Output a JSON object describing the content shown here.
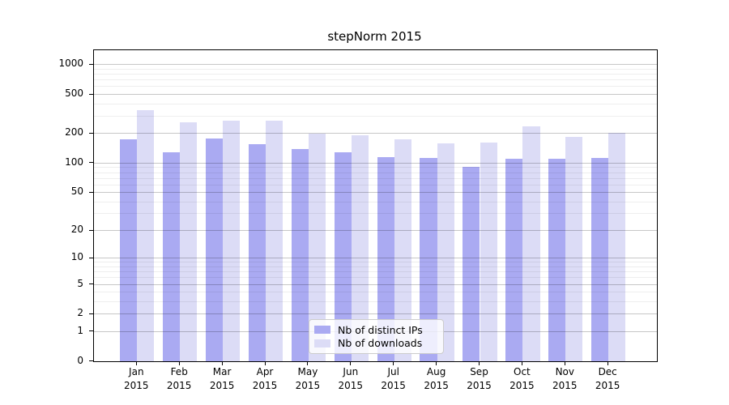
{
  "chart_data": {
    "type": "bar",
    "title": "stepNorm 2015",
    "categories": [
      "Jan 2015",
      "Feb 2015",
      "Mar 2015",
      "Apr 2015",
      "May 2015",
      "Jun 2015",
      "Jul 2015",
      "Aug 2015",
      "Sep 2015",
      "Oct 2015",
      "Nov 2015",
      "Dec 2015"
    ],
    "series": [
      {
        "name": "Nb of distinct IPs",
        "color": "#aaaaf2",
        "values": [
          175,
          130,
          178,
          155,
          138,
          130,
          116,
          112,
          91,
          110,
          110,
          112
        ]
      },
      {
        "name": "Nb of downloads",
        "color": "#dcdcf6",
        "values": [
          345,
          260,
          270,
          268,
          200,
          192,
          175,
          158,
          162,
          235,
          185,
          205
        ]
      }
    ],
    "xlabel": "",
    "ylabel": "",
    "yscale": "log1p",
    "ylim": [
      0,
      1400
    ],
    "y_ticks": [
      0,
      1,
      2,
      5,
      10,
      20,
      50,
      100,
      200,
      500,
      1000
    ],
    "grid": true,
    "legend_position": "inside lower center"
  },
  "y_axis": {
    "ticks": [
      {
        "value": 1000,
        "label": "1000"
      },
      {
        "value": 500,
        "label": "500"
      },
      {
        "value": 200,
        "label": "200"
      },
      {
        "value": 100,
        "label": "100"
      },
      {
        "value": 50,
        "label": "50"
      },
      {
        "value": 20,
        "label": "20"
      },
      {
        "value": 10,
        "label": "10"
      },
      {
        "value": 5,
        "label": "5"
      },
      {
        "value": 2,
        "label": "2"
      },
      {
        "value": 1,
        "label": "1"
      },
      {
        "value": 0,
        "label": "0"
      }
    ],
    "minor_gridlines": [
      3,
      4,
      6,
      7,
      8,
      9,
      30,
      40,
      60,
      70,
      80,
      90,
      300,
      400,
      600,
      700,
      800,
      900
    ]
  },
  "x_axis": {
    "ticks": [
      {
        "line1": "Jan",
        "line2": "2015"
      },
      {
        "line1": "Feb",
        "line2": "2015"
      },
      {
        "line1": "Mar",
        "line2": "2015"
      },
      {
        "line1": "Apr",
        "line2": "2015"
      },
      {
        "line1": "May",
        "line2": "2015"
      },
      {
        "line1": "Jun",
        "line2": "2015"
      },
      {
        "line1": "Jul",
        "line2": "2015"
      },
      {
        "line1": "Aug",
        "line2": "2015"
      },
      {
        "line1": "Sep",
        "line2": "2015"
      },
      {
        "line1": "Oct",
        "line2": "2015"
      },
      {
        "line1": "Nov",
        "line2": "2015"
      },
      {
        "line1": "Dec",
        "line2": "2015"
      }
    ]
  },
  "legend": {
    "items": [
      {
        "label": "Nb of distinct IPs",
        "color": "#aaaaf2"
      },
      {
        "label": "Nb of downloads",
        "color": "#dcdcf6"
      }
    ]
  },
  "colors": {
    "spine": "#000000",
    "grid_major": "rgba(0,0,0,0.22)",
    "grid_minor": "rgba(0,0,0,0.065)",
    "legend_border": "#cccccc",
    "legend_bg": "rgba(255,255,255,0.8)"
  }
}
